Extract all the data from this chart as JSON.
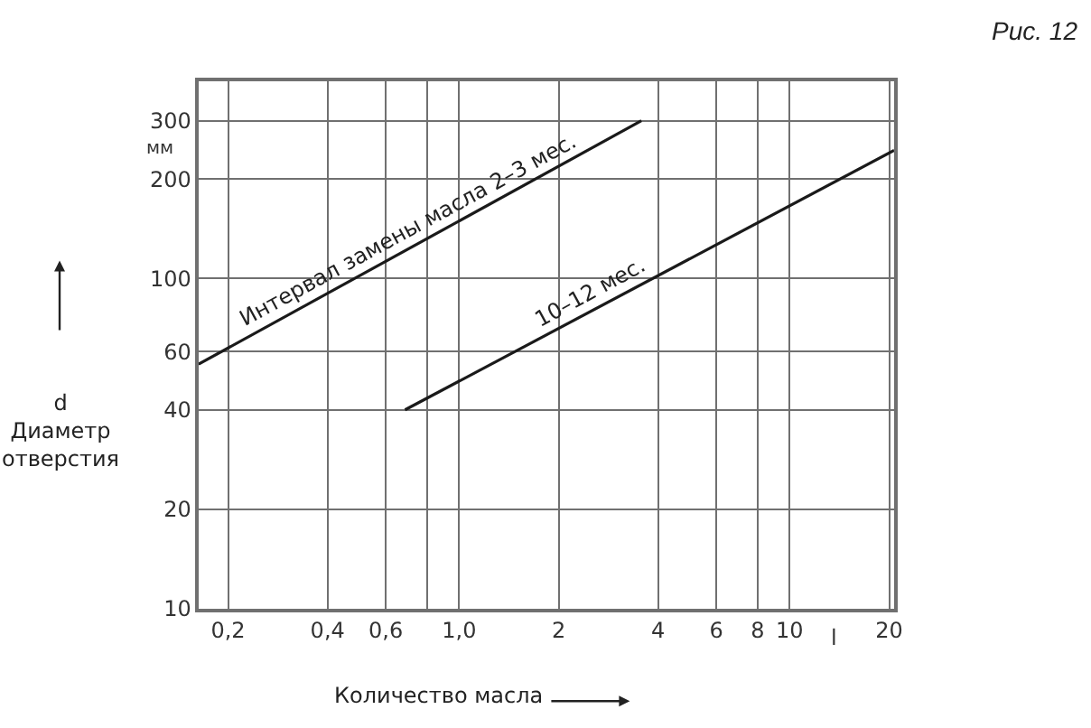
{
  "chart_data": {
    "type": "line",
    "log": "xy",
    "xlabel": "Количество масла",
    "ylabel": "d\nДиаметр\nотверстия",
    "series": [
      {
        "color": "#1a1a1a",
        "x": [
          0.163,
          3.56
        ],
        "values": [
          55,
          300
        ]
      },
      {
        "color": "#1a1a1a",
        "x": [
          0.686,
          20.7
        ],
        "values": [
          40,
          244
        ]
      }
    ],
    "xlim": [
      0.163,
      20.7
    ],
    "ylim": [
      10,
      395
    ],
    "xticks": [
      {
        "value": 0.2,
        "label": "0,2"
      },
      {
        "value": 0.4,
        "label": "0,4"
      },
      {
        "value": 0.6,
        "label": "0,6"
      },
      {
        "value": 0.8,
        "label": null
      },
      {
        "value": 1.0,
        "label": "1,0"
      },
      2,
      4,
      6,
      8,
      10,
      20
    ],
    "yticks": [
      10,
      20,
      40,
      60,
      100,
      200,
      300
    ],
    "grid": true,
    "marker": "none",
    "line_style": "solid",
    "annotations": [
      "Рис. 12",
      "мм",
      "l",
      {
        "text": "Интервал замены масла 2–3 мес.",
        "x": 0.74,
        "y": 125
      },
      {
        "text": "10–12 мес.",
        "x": 2.6,
        "y": 81
      }
    ]
  }
}
